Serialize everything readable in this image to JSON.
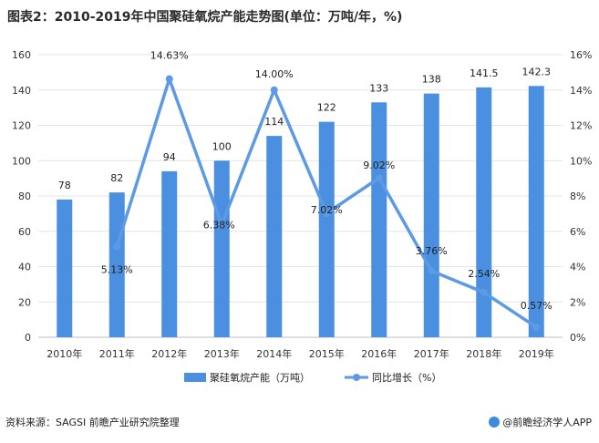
{
  "header": {
    "title": "图表2：2010-2019年中国聚硅氧烷产能走势图(单位：万吨/年，%)"
  },
  "footer": {
    "source": "资料来源：SAGSI 前瞻产业研究院整理",
    "brand": "@前瞻经济学人APP"
  },
  "colors": {
    "bar": "#4a8fe0",
    "line": "#5c9ae6",
    "grid": "#e4e4e4",
    "axis_text": "#333333"
  },
  "chart_data": {
    "type": "bar",
    "title": "图表2：2010-2019年中国聚硅氧烷产能走势图(单位：万吨/年，%)",
    "categories": [
      "2010年",
      "2011年",
      "2012年",
      "2013年",
      "2014年",
      "2015年",
      "2016年",
      "2017年",
      "2018年",
      "2019年"
    ],
    "series": [
      {
        "name": "聚硅氧烷产能（万吨）",
        "type": "bar",
        "axis": "left",
        "values": [
          78,
          82,
          94,
          100,
          114,
          122,
          133,
          138,
          141.5,
          142.3
        ],
        "labels": [
          "78",
          "82",
          "94",
          "100",
          "114",
          "122",
          "133",
          "138",
          "141.5",
          "142.3"
        ]
      },
      {
        "name": "同比增长（%）",
        "type": "line",
        "axis": "right",
        "values": [
          null,
          5.13,
          14.63,
          6.38,
          14.0,
          7.02,
          9.02,
          3.76,
          2.54,
          0.57
        ],
        "labels": [
          "",
          "5.13%",
          "14.63%",
          "6.38%",
          "14.00%",
          "7.02%",
          "9.02%",
          "3.76%",
          "2.54%",
          "0.57%"
        ]
      }
    ],
    "left_axis": {
      "ylim": [
        0,
        160
      ],
      "ticks": [
        "0",
        "20",
        "40",
        "60",
        "80",
        "100",
        "120",
        "140",
        "160"
      ]
    },
    "right_axis": {
      "ylim": [
        0,
        16
      ],
      "ticks": [
        "0%",
        "2%",
        "4%",
        "6%",
        "8%",
        "10%",
        "12%",
        "14%",
        "16%"
      ]
    },
    "grid": true,
    "legend_position": "bottom"
  }
}
